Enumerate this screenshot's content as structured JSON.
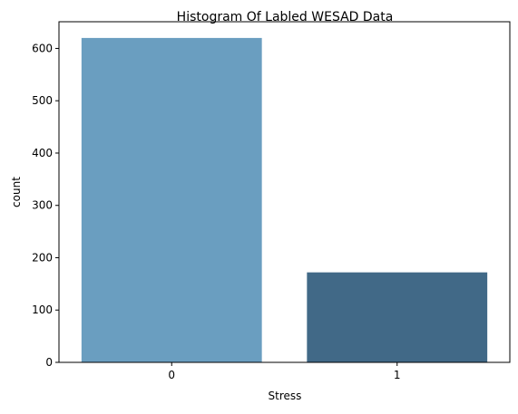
{
  "chart_data": {
    "type": "bar",
    "title": "Histogram Of Labled WESAD Data",
    "xlabel": "Stress",
    "ylabel": "count",
    "categories": [
      "0",
      "1"
    ],
    "values": [
      620,
      172
    ],
    "ylim": [
      0,
      651
    ],
    "yticks": [
      0,
      100,
      200,
      300,
      400,
      500,
      600
    ],
    "grid": false,
    "legend": "none",
    "colors": [
      "#6a9ec0",
      "#416987"
    ]
  }
}
